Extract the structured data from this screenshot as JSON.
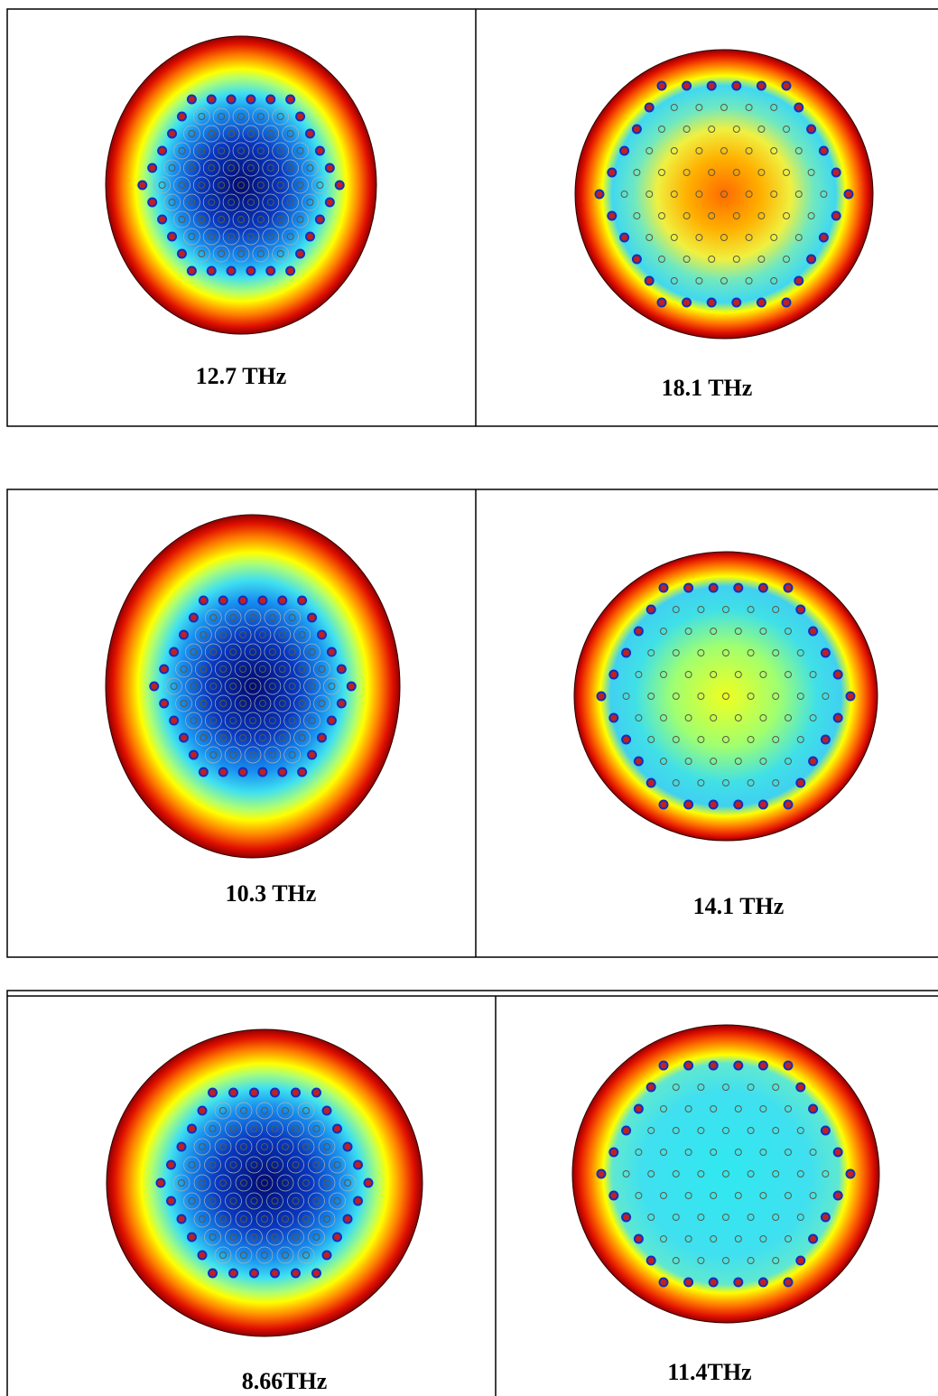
{
  "panels": [
    {
      "caption": "12.7 THz"
    },
    {
      "caption": "18.1 THz"
    },
    {
      "caption": "10.3 THz"
    },
    {
      "caption": "14.1 THz"
    },
    {
      "caption": "8.66THz"
    },
    {
      "caption": "11.4THz"
    }
  ]
}
